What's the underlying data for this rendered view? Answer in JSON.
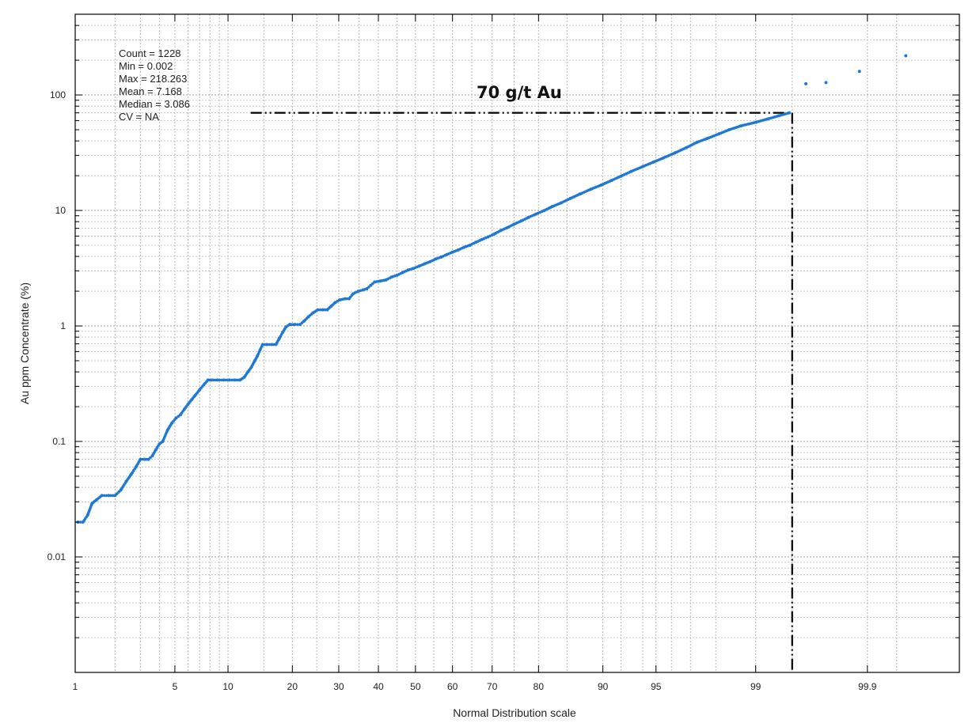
{
  "chart_data": {
    "type": "scatter",
    "title": "",
    "xlabel": "Normal Distribution scale",
    "ylabel": "Au ppm Concentrate (%)",
    "x_scale": "normal-probability",
    "y_scale": "log",
    "xlim": [
      1,
      99.99
    ],
    "ylim": [
      0.001,
      500
    ],
    "grid": true,
    "x_ticks": [
      {
        "value": 1,
        "label": "1"
      },
      {
        "value": 5,
        "label": "5"
      },
      {
        "value": 10,
        "label": "10"
      },
      {
        "value": 20,
        "label": "20"
      },
      {
        "value": 30,
        "label": "30"
      },
      {
        "value": 40,
        "label": "40"
      },
      {
        "value": 50,
        "label": "50"
      },
      {
        "value": 60,
        "label": "60"
      },
      {
        "value": 70,
        "label": "70"
      },
      {
        "value": 80,
        "label": "80"
      },
      {
        "value": 90,
        "label": "90"
      },
      {
        "value": 95,
        "label": "95"
      },
      {
        "value": 99,
        "label": "99"
      },
      {
        "value": 99.9,
        "label": "99.9"
      }
    ],
    "y_ticks": [
      {
        "value": 0.01,
        "label": "0.01"
      },
      {
        "value": 0.1,
        "label": "0.1"
      },
      {
        "value": 1,
        "label": "1"
      },
      {
        "value": 10,
        "label": "10"
      },
      {
        "value": 100,
        "label": "100"
      }
    ],
    "stats": [
      {
        "label": "Count =",
        "value": "1228"
      },
      {
        "label": "Min =",
        "value": "0.002"
      },
      {
        "label": "Max =",
        "value": "218.263"
      },
      {
        "label": "Mean =",
        "value": "7.168"
      },
      {
        "label": "Median =",
        "value": "3.086"
      },
      {
        "label": "CV =",
        "value": "NA"
      }
    ],
    "annotation": {
      "text": "70 g/t Au",
      "threshold_value": 70,
      "threshold_percentile": 99.5,
      "line_start_percentile": 13
    },
    "series": [
      {
        "color": "#1f78d4",
        "points": [
          [
            1.05,
            0.02
          ],
          [
            1.15,
            0.02
          ],
          [
            1.25,
            0.023
          ],
          [
            1.35,
            0.029
          ],
          [
            1.45,
            0.031
          ],
          [
            1.6,
            0.034
          ],
          [
            1.8,
            0.034
          ],
          [
            2.0,
            0.034
          ],
          [
            2.2,
            0.038
          ],
          [
            2.4,
            0.045
          ],
          [
            2.6,
            0.052
          ],
          [
            2.8,
            0.06
          ],
          [
            3.0,
            0.07
          ],
          [
            3.2,
            0.07
          ],
          [
            3.4,
            0.07
          ],
          [
            3.6,
            0.075
          ],
          [
            3.8,
            0.085
          ],
          [
            4.0,
            0.095
          ],
          [
            4.2,
            0.1
          ],
          [
            4.5,
            0.125
          ],
          [
            4.8,
            0.145
          ],
          [
            5.1,
            0.16
          ],
          [
            5.4,
            0.17
          ],
          [
            5.7,
            0.19
          ],
          [
            6.0,
            0.21
          ],
          [
            6.3,
            0.23
          ],
          [
            6.6,
            0.25
          ],
          [
            7.0,
            0.28
          ],
          [
            7.4,
            0.31
          ],
          [
            7.8,
            0.34
          ],
          [
            8.2,
            0.34
          ],
          [
            8.8,
            0.34
          ],
          [
            9.5,
            0.34
          ],
          [
            10.2,
            0.34
          ],
          [
            10.8,
            0.34
          ],
          [
            11.5,
            0.34
          ],
          [
            12.1,
            0.36
          ],
          [
            12.6,
            0.4
          ],
          [
            13.1,
            0.44
          ],
          [
            13.6,
            0.5
          ],
          [
            14.0,
            0.55
          ],
          [
            14.4,
            0.62
          ],
          [
            14.8,
            0.69
          ],
          [
            15.5,
            0.69
          ],
          [
            16.3,
            0.69
          ],
          [
            17.0,
            0.69
          ],
          [
            17.6,
            0.78
          ],
          [
            18.2,
            0.88
          ],
          [
            18.8,
            0.98
          ],
          [
            19.5,
            1.03
          ],
          [
            20.5,
            1.03
          ],
          [
            21.5,
            1.03
          ],
          [
            22.3,
            1.1
          ],
          [
            23.2,
            1.2
          ],
          [
            24.2,
            1.3
          ],
          [
            25.2,
            1.38
          ],
          [
            26.3,
            1.38
          ],
          [
            27.3,
            1.38
          ],
          [
            28.2,
            1.48
          ],
          [
            29.2,
            1.6
          ],
          [
            30.2,
            1.68
          ],
          [
            31.5,
            1.72
          ],
          [
            32.5,
            1.72
          ],
          [
            33.5,
            1.9
          ],
          [
            34.8,
            2.0
          ],
          [
            36.0,
            2.05
          ],
          [
            37.0,
            2.1
          ],
          [
            38.0,
            2.25
          ],
          [
            39.0,
            2.4
          ],
          [
            40.5,
            2.45
          ],
          [
            42.0,
            2.5
          ],
          [
            43.5,
            2.65
          ],
          [
            45.0,
            2.75
          ],
          [
            46.5,
            2.9
          ],
          [
            48.0,
            3.05
          ],
          [
            49.5,
            3.15
          ],
          [
            51.0,
            3.3
          ],
          [
            52.5,
            3.45
          ],
          [
            54.0,
            3.6
          ],
          [
            55.5,
            3.8
          ],
          [
            57.0,
            3.95
          ],
          [
            58.5,
            4.15
          ],
          [
            60.0,
            4.35
          ],
          [
            61.5,
            4.55
          ],
          [
            63.0,
            4.8
          ],
          [
            64.5,
            5.0
          ],
          [
            66.0,
            5.3
          ],
          [
            67.5,
            5.6
          ],
          [
            69.0,
            5.9
          ],
          [
            70.5,
            6.25
          ],
          [
            72.0,
            6.7
          ],
          [
            73.5,
            7.1
          ],
          [
            75.0,
            7.6
          ],
          [
            76.5,
            8.1
          ],
          [
            78.0,
            8.7
          ],
          [
            79.5,
            9.3
          ],
          [
            81.0,
            9.95
          ],
          [
            82.5,
            10.8
          ],
          [
            84.0,
            11.6
          ],
          [
            85.5,
            12.7
          ],
          [
            87.0,
            13.9
          ],
          [
            88.5,
            15.3
          ],
          [
            89.8,
            16.6
          ],
          [
            91.0,
            18.2
          ],
          [
            92.0,
            19.8
          ],
          [
            93.0,
            21.8
          ],
          [
            94.0,
            24.0
          ],
          [
            94.8,
            26.2
          ],
          [
            95.5,
            28.5
          ],
          [
            96.2,
            31.5
          ],
          [
            96.8,
            35.0
          ],
          [
            97.3,
            39.0
          ],
          [
            97.7,
            42.0
          ],
          [
            98.1,
            46.0
          ],
          [
            98.4,
            50.0
          ],
          [
            98.7,
            54.0
          ],
          [
            99.0,
            58.0
          ],
          [
            99.2,
            62.0
          ],
          [
            99.35,
            66.0
          ],
          [
            99.47,
            70.0
          ],
          [
            99.62,
            125.0
          ],
          [
            99.75,
            128.0
          ],
          [
            99.88,
            160.0
          ],
          [
            99.96,
            218.263
          ]
        ]
      }
    ]
  }
}
